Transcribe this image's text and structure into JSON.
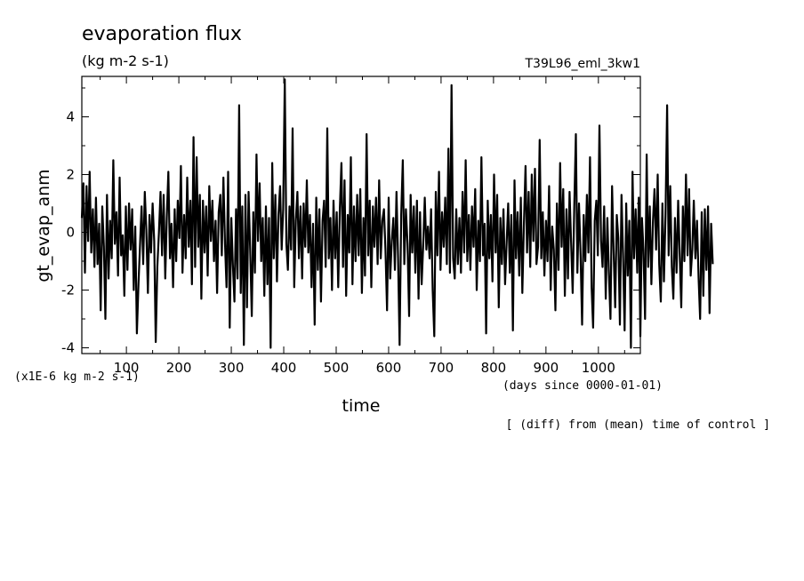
{
  "chart_data": {
    "type": "line",
    "title": "evaporation flux",
    "subtitle": "(kg m-2 s-1)",
    "run_label": "T39L96_eml_3kw1",
    "xlabel": "time",
    "x_units": "(days since 0000-01-01)",
    "ylabel": "gt_evap_anm",
    "y_units": "(x1E-6 kg m-2 s-1)",
    "footnote": "[ (diff) from (mean) time of control ]",
    "xlim": [
      15,
      1080
    ],
    "ylim": [
      -4.2,
      5.4
    ],
    "x_ticks": [
      100,
      200,
      300,
      400,
      500,
      600,
      700,
      800,
      900,
      1000
    ],
    "y_ticks": [
      -4,
      -2,
      0,
      2,
      4
    ],
    "grid": false,
    "x_step_days": 3,
    "series": [
      {
        "values": [
          0.5,
          1.7,
          -1.4,
          1.6,
          -0.3,
          2.1,
          -0.7,
          0.8,
          -1.2,
          1.2,
          -1.1,
          0.3,
          -2.7,
          0.9,
          -0.5,
          -3.0,
          1.3,
          -1.6,
          0.4,
          -0.9,
          2.5,
          -0.4,
          0.7,
          -1.5,
          1.9,
          -0.8,
          -0.1,
          -2.2,
          0.9,
          -1.3,
          1.0,
          -0.6,
          0.8,
          -2.0,
          0.2,
          -3.5,
          -1.8,
          -0.4,
          0.9,
          -1.1,
          1.4,
          0.1,
          -2.1,
          0.6,
          -0.7,
          1.0,
          -0.3,
          -3.8,
          -1.2,
          0.0,
          1.4,
          -0.8,
          1.3,
          -1.6,
          0.5,
          2.1,
          -0.9,
          0.3,
          -1.9,
          0.8,
          -1.0,
          1.1,
          -0.2,
          2.3,
          -1.4,
          0.6,
          -0.9,
          1.9,
          -0.5,
          1.1,
          -1.8,
          3.3,
          -1.2,
          2.6,
          -0.5,
          1.3,
          -2.3,
          1.1,
          -0.7,
          0.9,
          -1.5,
          1.6,
          -0.3,
          1.1,
          -1.0,
          0.4,
          -2.1,
          0.7,
          1.3,
          -0.8,
          1.9,
          -0.4,
          -1.9,
          2.1,
          -3.3,
          0.5,
          -1.1,
          -2.4,
          0.8,
          -1.6,
          4.4,
          -2.1,
          0.9,
          -3.9,
          1.3,
          -2.6,
          1.4,
          -0.6,
          -2.9,
          0.7,
          -1.4,
          2.7,
          -0.3,
          1.7,
          -1.0,
          0.5,
          -2.2,
          0.9,
          -1.8,
          0.5,
          -4.0,
          2.4,
          -0.9,
          1.3,
          -1.7,
          0.6,
          1.6,
          -0.6,
          0.8,
          5.3,
          -0.4,
          -1.3,
          0.9,
          -0.6,
          3.6,
          -1.9,
          0.4,
          1.4,
          -0.9,
          0.9,
          -1.6,
          1.0,
          -0.5,
          1.8,
          -0.7,
          0.6,
          -1.9,
          0.3,
          -3.2,
          1.2,
          -1.3,
          0.8,
          -2.4,
          0.4,
          1.1,
          -1.2,
          3.6,
          -0.9,
          0.5,
          -2.0,
          1.1,
          -0.9,
          0.7,
          -1.9,
          0.8,
          2.4,
          -1.2,
          1.8,
          -2.2,
          0.6,
          -0.7,
          2.6,
          -1.8,
          0.9,
          -1.0,
          1.3,
          -0.8,
          1.5,
          -2.1,
          0.5,
          -1.5,
          3.4,
          -0.8,
          1.1,
          -1.9,
          0.9,
          -0.5,
          1.2,
          -1.1,
          1.8,
          -0.9,
          0.4,
          0.8,
          -0.6,
          -2.7,
          1.2,
          -1.6,
          -0.3,
          0.5,
          -1.3,
          1.4,
          -0.9,
          -3.9,
          0.6,
          2.5,
          -1.1,
          0.8,
          -0.4,
          -2.9,
          1.3,
          -0.7,
          0.9,
          -1.4,
          1.1,
          -2.3,
          0.7,
          -1.8,
          -0.4,
          1.2,
          -0.6,
          0.2,
          -0.9,
          0.8,
          -2.0,
          -3.6,
          1.4,
          -0.8,
          2.1,
          -1.3,
          0.7,
          -0.5,
          1.2,
          -1.1,
          2.9,
          -1.4,
          5.1,
          -0.9,
          -1.6,
          0.8,
          -1.1,
          0.5,
          -1.4,
          1.4,
          -0.7,
          2.5,
          -1.0,
          0.6,
          -1.3,
          0.9,
          -0.5,
          1.5,
          -2.0,
          0.4,
          -1.0,
          2.6,
          -0.8,
          0.3,
          -3.5,
          1.1,
          -0.9,
          0.6,
          -1.7,
          2.0,
          -0.7,
          1.3,
          -2.6,
          0.5,
          -1.1,
          0.8,
          -1.8,
          -0.4,
          1.0,
          -1.4,
          0.6,
          -3.4,
          1.8,
          -0.9,
          0.7,
          -1.5,
          1.2,
          -2.1,
          0.3,
          2.3,
          -0.7,
          1.4,
          -1.2,
          2.0,
          -0.3,
          2.2,
          -1.1,
          -0.5,
          3.2,
          -0.9,
          0.7,
          -1.5,
          0.4,
          -1.0,
          1.6,
          -2.0,
          0.2,
          -0.6,
          -2.7,
          1.0,
          -1.3,
          2.4,
          -0.5,
          1.5,
          -2.2,
          0.8,
          -1.6,
          1.4,
          -0.4,
          -2.1,
          0.9,
          3.4,
          -1.4,
          1.0,
          -0.8,
          -3.2,
          0.6,
          -1.0,
          1.3,
          -0.7,
          2.6,
          -1.9,
          -3.3,
          0.4,
          1.1,
          -0.8,
          3.7,
          -0.3,
          -1.2,
          0.9,
          -2.3,
          0.5,
          -1.4,
          -3.0,
          1.6,
          -0.6,
          -2.6,
          0.6,
          -0.2,
          -3.2,
          1.3,
          -0.7,
          -3.4,
          1.0,
          -1.5,
          0.4,
          -4.0,
          2.1,
          -0.9,
          0.8,
          -1.4,
          1.2,
          -3.6,
          0.5,
          -0.6,
          -3.0,
          2.7,
          -1.2,
          0.9,
          -1.8,
          0.4,
          1.5,
          -0.6,
          2.0,
          -1.1,
          -2.4,
          1.0,
          -1.7,
          0.6,
          4.4,
          -0.8,
          1.6,
          -1.2,
          -2.3,
          0.5,
          -1.4,
          1.1,
          -0.7,
          -2.6,
          0.9,
          -1.0,
          2.0,
          -0.8,
          1.5,
          -1.5,
          -0.6,
          1.1,
          -0.9,
          0.4,
          -1.6,
          -3.0,
          0.7,
          -2.2,
          0.8,
          -1.3,
          0.9,
          -2.8,
          0.3,
          -1.1
        ]
      }
    ]
  }
}
